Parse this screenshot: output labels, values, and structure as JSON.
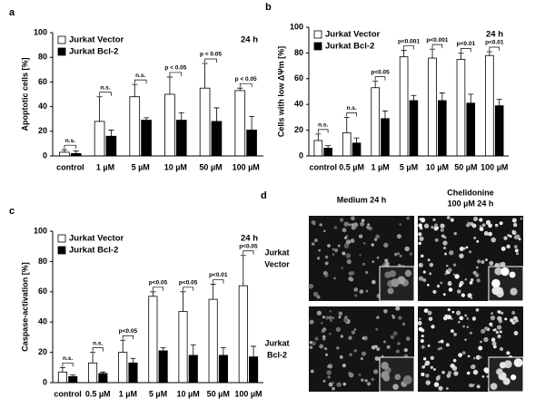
{
  "chart_data": [
    {
      "type": "bar",
      "panel_label": "a",
      "y_label": "Apoptotic cells [%]",
      "note": "24 h",
      "categories": [
        "control",
        "1 µM",
        "5 µM",
        "10 µM",
        "50 µM",
        "100 µM"
      ],
      "series": [
        {
          "name": "Jurkat Vector",
          "color": "#ffffff",
          "values": [
            3,
            28,
            48,
            50,
            55,
            53
          ],
          "errors": [
            2,
            20,
            10,
            14,
            20,
            2
          ]
        },
        {
          "name": "Jurkat Bcl-2",
          "color": "#000000",
          "values": [
            2,
            16,
            29,
            29,
            28,
            21
          ],
          "errors": [
            2,
            5,
            2,
            6,
            11,
            11
          ]
        }
      ],
      "annotations": [
        "n.s.",
        "n.s.",
        "n.s.",
        "p < 0.05",
        "p < 0.05",
        "p < 0.05"
      ],
      "ylim": [
        0,
        100
      ],
      "yticks": [
        0,
        20,
        40,
        60,
        80,
        100
      ],
      "legend": "top-left"
    },
    {
      "type": "bar",
      "panel_label": "b",
      "y_label": "Cells with low  ΔΨm [%]",
      "note": "24 h",
      "categories": [
        "control",
        "0.5 µM",
        "1 µM",
        "5 µM",
        "10 µM",
        "50 µM",
        "100 µM"
      ],
      "series": [
        {
          "name": "Jurkat Vector",
          "color": "#ffffff",
          "values": [
            12,
            18,
            53,
            77,
            76,
            75,
            78
          ],
          "errors": [
            5,
            12,
            5,
            5,
            7,
            5,
            3
          ]
        },
        {
          "name": "Jurkat Bcl-2",
          "color": "#000000",
          "values": [
            6,
            10,
            29,
            43,
            43,
            41,
            39
          ],
          "errors": [
            2,
            4,
            6,
            4,
            6,
            7,
            5
          ]
        }
      ],
      "annotations": [
        "n.s.",
        "n.s.",
        "p<0.05",
        "p<0.001",
        "p<0.001",
        "p<0.01",
        "p<0.01"
      ],
      "ylim": [
        0,
        100
      ],
      "yticks": [
        0,
        20,
        40,
        60,
        80,
        100
      ],
      "legend": "top-left"
    },
    {
      "type": "bar",
      "panel_label": "c",
      "y_label": "Caspase-activation [%]",
      "note": "24 h",
      "categories": [
        "control",
        "0.5 µM",
        "1 µM",
        "5 µM",
        "10 µM",
        "50 µM",
        "100 µM"
      ],
      "series": [
        {
          "name": "Jurkat Vector",
          "color": "#ffffff",
          "values": [
            7,
            13,
            20,
            57,
            47,
            55,
            64
          ],
          "errors": [
            3,
            7,
            8,
            3,
            13,
            10,
            20
          ]
        },
        {
          "name": "Jurkat Bcl-2",
          "color": "#000000",
          "values": [
            4,
            6,
            13,
            21,
            18,
            18,
            17
          ],
          "errors": [
            1,
            1,
            3,
            2,
            7,
            5,
            7
          ]
        }
      ],
      "annotations": [
        "n.s.",
        "n.s.",
        "p<0.05",
        "p<0.05",
        "p<0.05",
        "p<0.01",
        "p<0.05"
      ],
      "ylim": [
        0,
        100
      ],
      "yticks": [
        0,
        20,
        40,
        60,
        80,
        100
      ],
      "legend": "top-left"
    }
  ],
  "micrographs": {
    "panel_label": "d",
    "columns": [
      [
        "Medium 24 h"
      ],
      [
        "Chelidonine",
        "100 µM 24 h"
      ]
    ],
    "rows": [
      [
        "Jurkat",
        "Vector"
      ],
      [
        "Jurkat",
        "Bcl-2"
      ]
    ]
  }
}
